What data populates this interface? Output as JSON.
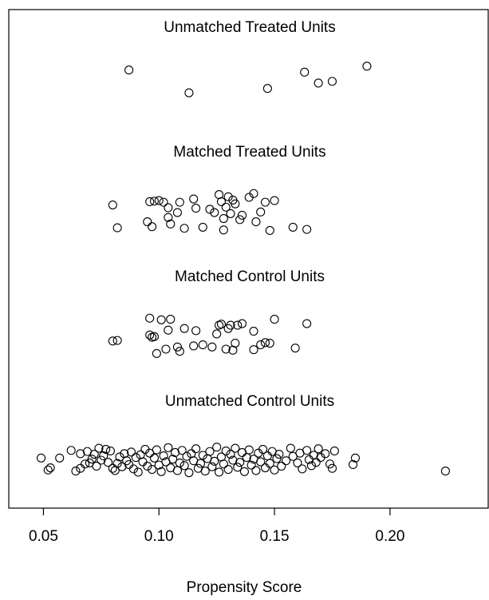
{
  "chart_data": {
    "type": "scatter",
    "title": "",
    "xlabel": "Propensity Score",
    "ylabel": "",
    "xlim": [
      0.035,
      0.2425
    ],
    "ylim": [
      0,
      4
    ],
    "grid": false,
    "xticks": [
      0.05,
      0.1,
      0.15,
      0.2
    ],
    "xtick_labels": [
      "0.05",
      "0.10",
      "0.15",
      "0.20"
    ],
    "series": [
      {
        "name": "Unmatched Treated Units",
        "x": [
          0.087,
          0.113,
          0.147,
          0.163,
          0.169,
          0.175,
          0.19
        ],
        "jitter": [
          0.8,
          0.38,
          0.46,
          0.76,
          0.56,
          0.59,
          0.87
        ]
      },
      {
        "name": "Matched Treated Units",
        "x": [
          0.08,
          0.082,
          0.095,
          0.096,
          0.097,
          0.098,
          0.1,
          0.102,
          0.104,
          0.104,
          0.105,
          0.108,
          0.109,
          0.111,
          0.115,
          0.116,
          0.119,
          0.122,
          0.124,
          0.126,
          0.127,
          0.128,
          0.128,
          0.129,
          0.13,
          0.131,
          0.132,
          0.133,
          0.135,
          0.136,
          0.139,
          0.141,
          0.142,
          0.144,
          0.146,
          0.148,
          0.15,
          0.158,
          0.164
        ],
        "jitter": [
          0.61,
          0.19,
          0.3,
          0.67,
          0.21,
          0.68,
          0.69,
          0.66,
          0.38,
          0.56,
          0.26,
          0.47,
          0.66,
          0.18,
          0.72,
          0.55,
          0.2,
          0.53,
          0.47,
          0.8,
          0.67,
          0.36,
          0.15,
          0.57,
          0.76,
          0.45,
          0.7,
          0.63,
          0.34,
          0.42,
          0.75,
          0.82,
          0.3,
          0.48,
          0.66,
          0.14,
          0.69,
          0.2,
          0.16
        ]
      },
      {
        "name": "Matched Control Units",
        "x": [
          0.08,
          0.082,
          0.096,
          0.096,
          0.097,
          0.098,
          0.099,
          0.101,
          0.103,
          0.104,
          0.105,
          0.108,
          0.109,
          0.111,
          0.115,
          0.116,
          0.119,
          0.123,
          0.125,
          0.126,
          0.127,
          0.129,
          0.13,
          0.131,
          0.132,
          0.133,
          0.134,
          0.136,
          0.141,
          0.141,
          0.144,
          0.146,
          0.148,
          0.15,
          0.159,
          0.164
        ],
        "jitter": [
          0.4,
          0.41,
          0.82,
          0.51,
          0.47,
          0.48,
          0.17,
          0.79,
          0.25,
          0.6,
          0.8,
          0.29,
          0.21,
          0.63,
          0.31,
          0.59,
          0.33,
          0.29,
          0.53,
          0.69,
          0.71,
          0.25,
          0.63,
          0.69,
          0.23,
          0.36,
          0.69,
          0.72,
          0.24,
          0.58,
          0.33,
          0.37,
          0.36,
          0.8,
          0.27,
          0.72
        ]
      },
      {
        "name": "Unmatched Control Units",
        "x": [
          0.049,
          0.052,
          0.053,
          0.057,
          0.062,
          0.064,
          0.066,
          0.066,
          0.068,
          0.069,
          0.07,
          0.071,
          0.072,
          0.073,
          0.074,
          0.075,
          0.076,
          0.077,
          0.078,
          0.079,
          0.08,
          0.081,
          0.082,
          0.083,
          0.084,
          0.085,
          0.086,
          0.087,
          0.088,
          0.089,
          0.09,
          0.091,
          0.092,
          0.093,
          0.094,
          0.095,
          0.096,
          0.097,
          0.098,
          0.099,
          0.1,
          0.101,
          0.102,
          0.103,
          0.104,
          0.105,
          0.106,
          0.107,
          0.108,
          0.109,
          0.11,
          0.111,
          0.112,
          0.113,
          0.114,
          0.115,
          0.116,
          0.117,
          0.118,
          0.119,
          0.12,
          0.121,
          0.122,
          0.123,
          0.124,
          0.125,
          0.126,
          0.127,
          0.128,
          0.129,
          0.13,
          0.131,
          0.132,
          0.133,
          0.134,
          0.135,
          0.136,
          0.137,
          0.138,
          0.139,
          0.14,
          0.141,
          0.142,
          0.143,
          0.144,
          0.145,
          0.146,
          0.147,
          0.148,
          0.149,
          0.15,
          0.151,
          0.152,
          0.153,
          0.155,
          0.157,
          0.158,
          0.16,
          0.161,
          0.162,
          0.164,
          0.165,
          0.166,
          0.167,
          0.168,
          0.169,
          0.17,
          0.172,
          0.174,
          0.175,
          0.176,
          0.184,
          0.185,
          0.224
        ],
        "jitter": [
          0.54,
          0.32,
          0.36,
          0.54,
          0.68,
          0.3,
          0.35,
          0.62,
          0.43,
          0.66,
          0.45,
          0.52,
          0.61,
          0.39,
          0.72,
          0.5,
          0.58,
          0.7,
          0.46,
          0.67,
          0.35,
          0.31,
          0.44,
          0.56,
          0.38,
          0.62,
          0.49,
          0.42,
          0.65,
          0.34,
          0.55,
          0.28,
          0.6,
          0.47,
          0.7,
          0.39,
          0.63,
          0.33,
          0.54,
          0.69,
          0.41,
          0.29,
          0.58,
          0.47,
          0.73,
          0.36,
          0.52,
          0.64,
          0.31,
          0.45,
          0.68,
          0.4,
          0.57,
          0.27,
          0.62,
          0.49,
          0.71,
          0.35,
          0.44,
          0.59,
          0.3,
          0.53,
          0.66,
          0.38,
          0.48,
          0.74,
          0.28,
          0.56,
          0.43,
          0.67,
          0.33,
          0.61,
          0.5,
          0.72,
          0.37,
          0.46,
          0.64,
          0.29,
          0.55,
          0.69,
          0.41,
          0.52,
          0.31,
          0.63,
          0.47,
          0.7,
          0.36,
          0.58,
          0.44,
          0.66,
          0.32,
          0.53,
          0.61,
          0.39,
          0.49,
          0.72,
          0.57,
          0.45,
          0.63,
          0.34,
          0.68,
          0.51,
          0.4,
          0.59,
          0.46,
          0.71,
          0.55,
          0.62,
          0.43,
          0.35,
          0.67,
          0.42,
          0.54,
          0.3
        ]
      }
    ]
  }
}
